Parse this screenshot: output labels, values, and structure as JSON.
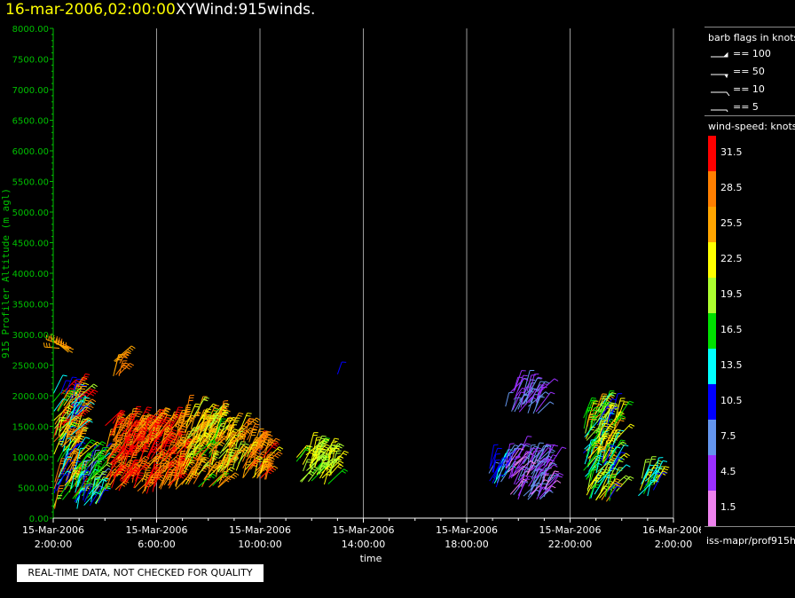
{
  "header": {
    "date_time": "16-mar-2006,02:00:00",
    "product": "XYWind:915winds."
  },
  "chart_data": {
    "type": "scatter",
    "title": "XYWind:915winds.",
    "xlabel": "time",
    "ylabel": "915 Profiler Altitude (m agl)",
    "ylim": [
      0,
      8000
    ],
    "yticks": [
      "0.00",
      "500.00",
      "1000.00",
      "1500.00",
      "2000.00",
      "2500.00",
      "3000.00",
      "3500.00",
      "4000.00",
      "4500.00",
      "5000.00",
      "5500.00",
      "6000.00",
      "6500.00",
      "7000.00",
      "7500.00",
      "8000.00"
    ],
    "xlim_hours": [
      0,
      24
    ],
    "xticks": [
      {
        "date": "15-Mar-2006",
        "time": "2:00:00"
      },
      {
        "date": "15-Mar-2006",
        "time": "6:00:00"
      },
      {
        "date": "15-Mar-2006",
        "time": "10:00:00"
      },
      {
        "date": "15-Mar-2006",
        "time": "14:00:00"
      },
      {
        "date": "15-Mar-2006",
        "time": "18:00:00"
      },
      {
        "date": "15-Mar-2006",
        "time": "22:00:00"
      },
      {
        "date": "16-Mar-2006",
        "time": "2:00:00"
      }
    ],
    "grid": "vertical",
    "clusters": [
      {
        "t0": 0.0,
        "t1": 1.0,
        "a0": 150,
        "a1": 2050,
        "s0": 10,
        "s1": 33,
        "dir": 1
      },
      {
        "t0": 0.8,
        "t1": 1.8,
        "a0": 200,
        "a1": 1000,
        "s0": 8,
        "s1": 20,
        "dir": 1
      },
      {
        "t0": 2.0,
        "t1": 4.0,
        "a0": 400,
        "a1": 1550,
        "s0": 25,
        "s1": 33,
        "dir": 1
      },
      {
        "t0": 4.0,
        "t1": 5.0,
        "a0": 450,
        "a1": 1500,
        "s0": 24,
        "s1": 33,
        "dir": 1
      },
      {
        "t0": 5.0,
        "t1": 6.5,
        "a0": 500,
        "a1": 1700,
        "s0": 17,
        "s1": 30,
        "dir": 1
      },
      {
        "t0": 6.5,
        "t1": 7.2,
        "a0": 700,
        "a1": 1400,
        "s0": 20,
        "s1": 28,
        "dir": 1
      },
      {
        "t0": 7.3,
        "t1": 8.3,
        "a0": 600,
        "a1": 1300,
        "s0": 23,
        "s1": 31,
        "dir": 1
      },
      {
        "t0": 9.4,
        "t1": 10.8,
        "a0": 550,
        "a1": 1100,
        "s0": 17,
        "s1": 24,
        "dir": 1
      },
      {
        "t0": 2.3,
        "t1": 2.7,
        "a0": 2300,
        "a1": 2580,
        "s0": 24,
        "s1": 30,
        "dir": 1
      },
      {
        "t0": 0.2,
        "t1": 0.8,
        "a0": 2700,
        "a1": 2800,
        "s0": 24,
        "s1": 28,
        "dir": -1
      },
      {
        "t0": 17.5,
        "t1": 18.8,
        "a0": 1700,
        "a1": 2100,
        "s0": 3,
        "s1": 9,
        "dir": 1
      },
      {
        "t0": 16.8,
        "t1": 17.6,
        "a0": 500,
        "a1": 900,
        "s0": 7,
        "s1": 13,
        "dir": 1
      },
      {
        "t0": 17.5,
        "t1": 19.2,
        "a0": 300,
        "a1": 1000,
        "s0": 2,
        "s1": 8,
        "dir": 1
      },
      {
        "t0": 20.5,
        "t1": 21.8,
        "a0": 250,
        "a1": 1750,
        "s0": 10,
        "s1": 26,
        "dir": 1
      },
      {
        "t0": 22.6,
        "t1": 23.4,
        "a0": 350,
        "a1": 700,
        "s0": 10,
        "s1": 22,
        "dir": 1
      }
    ],
    "isolated": [
      {
        "t": 11.0,
        "alt": 2350,
        "s": 10,
        "dir": 1
      }
    ]
  },
  "barb_legend": {
    "title": "barb flags in knots",
    "items": [
      {
        "label": "== 100"
      },
      {
        "label": "== 50"
      },
      {
        "label": "== 10"
      },
      {
        "label": "== 5"
      }
    ]
  },
  "colorbar": {
    "title": "wind-speed: knots",
    "levels": [
      {
        "label": "31.5",
        "color": "#ff0000"
      },
      {
        "label": "28.5",
        "color": "#ff7f00"
      },
      {
        "label": "25.5",
        "color": "#ffa500"
      },
      {
        "label": "22.5",
        "color": "#ffff00"
      },
      {
        "label": "19.5",
        "color": "#adff2f"
      },
      {
        "label": "16.5",
        "color": "#00e000"
      },
      {
        "label": "13.5",
        "color": "#00ffff"
      },
      {
        "label": "10.5",
        "color": "#0000ff"
      },
      {
        "label": "7.5",
        "color": "#6495ed"
      },
      {
        "label": "4.5",
        "color": "#9b30ff"
      },
      {
        "label": "1.5",
        "color": "#ee82ee"
      }
    ]
  },
  "footer": {
    "source": "iss-mapr/prof915h",
    "disclaimer": "REAL-TIME DATA, NOT CHECKED FOR QUALITY"
  },
  "colors": {
    "axis": "#00c000",
    "grid": "#9a9a9a",
    "title_date": "#ffff00"
  }
}
